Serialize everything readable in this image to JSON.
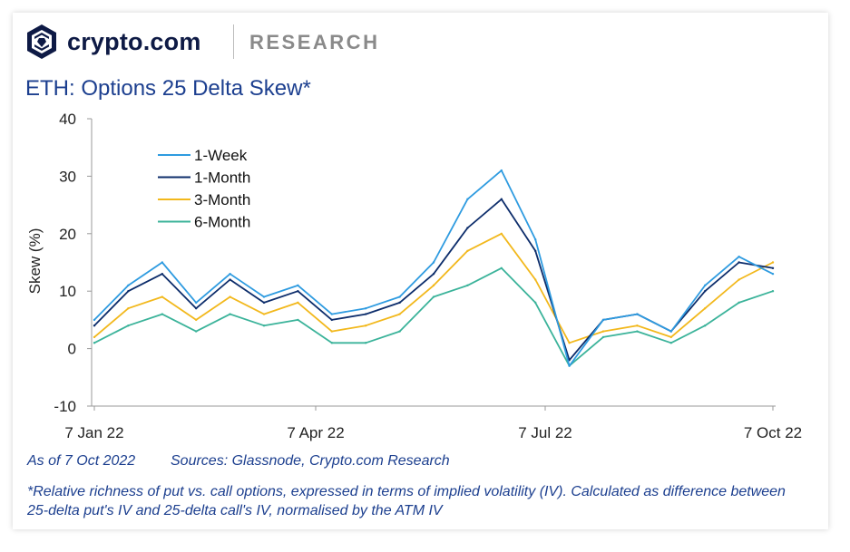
{
  "header": {
    "brand": "crypto.com",
    "section": "RESEARCH",
    "logo_icon": "crypto-com-shield-icon"
  },
  "title": "ETH: Options 25 Delta Skew*",
  "footer": {
    "as_of": "As of 7 Oct 2022",
    "sources": "Sources: Glassnode, Crypto.com Research",
    "footnote": "*Relative richness of put vs. call options, expressed in terms of implied volatility (IV). Calculated as difference between 25-delta put's IV and 25-delta call's IV, normalised by the ATM IV"
  },
  "colors": {
    "1-Week": "#2e9be0",
    "1-Month": "#0d2d6b",
    "3-Month": "#f2b81c",
    "6-Month": "#3bb39a",
    "title": "#1c3f8f"
  },
  "chart_data": {
    "type": "line",
    "title": "",
    "xlabel": "",
    "ylabel": "Skew (%)",
    "ylim": [
      -10,
      40
    ],
    "yticks": [
      -10,
      0,
      10,
      20,
      30,
      40
    ],
    "xticks": [
      "7 Jan 22",
      "7 Apr 22",
      "7 Jul 22",
      "7 Oct 22"
    ],
    "grid": false,
    "legend": "top-left",
    "x": [
      "7 Jan 22",
      "20 Jan 22",
      "3 Feb 22",
      "17 Feb 22",
      "3 Mar 22",
      "17 Mar 22",
      "31 Mar 22",
      "14 Apr 22",
      "28 Apr 22",
      "12 May 22",
      "26 May 22",
      "9 Jun 22",
      "23 Jun 22",
      "7 Jul 22",
      "21 Jul 22",
      "4 Aug 22",
      "18 Aug 22",
      "1 Sep 22",
      "15 Sep 22",
      "29 Sep 22",
      "7 Oct 22"
    ],
    "series": [
      {
        "name": "1-Week",
        "values": [
          5,
          11,
          15,
          8,
          13,
          9,
          11,
          6,
          7,
          9,
          15,
          26,
          31,
          19,
          -3,
          5,
          6,
          3,
          11,
          16,
          13
        ]
      },
      {
        "name": "1-Month",
        "values": [
          4,
          10,
          13,
          7,
          12,
          8,
          10,
          5,
          6,
          8,
          13,
          21,
          26,
          17,
          -2,
          5,
          6,
          3,
          10,
          15,
          14
        ]
      },
      {
        "name": "3-Month",
        "values": [
          2,
          7,
          9,
          5,
          9,
          6,
          8,
          3,
          4,
          6,
          11,
          17,
          20,
          12,
          1,
          3,
          4,
          2,
          7,
          12,
          15
        ]
      },
      {
        "name": "6-Month",
        "values": [
          1,
          4,
          6,
          3,
          6,
          4,
          5,
          1,
          1,
          3,
          9,
          11,
          14,
          8,
          -3,
          2,
          3,
          1,
          4,
          8,
          10
        ]
      }
    ]
  }
}
